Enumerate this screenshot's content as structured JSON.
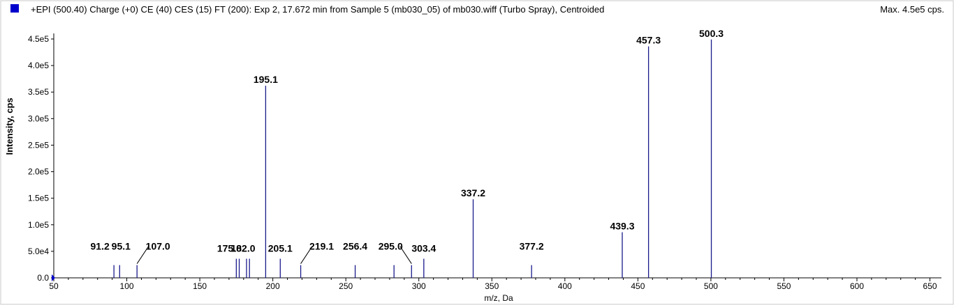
{
  "header": {
    "title": "+EPI (500.40) Charge (+0) CE (40) CES (15) FT (200): Exp 2, 17.672 min from Sample 5 (mb030_05) of mb030.wiff (Turbo Spray), Centroided",
    "max": "Max. 4.5e5 cps."
  },
  "colors": {
    "series": "#1a1a8c",
    "swatch": "#0000cc",
    "axis": "#000000"
  },
  "chart_data": {
    "type": "bar",
    "xlabel": "m/z, Da",
    "ylabel": "Intensity, cps",
    "xlim": [
      50,
      655
    ],
    "ylim": [
      0,
      450000
    ],
    "xticks": [
      50,
      100,
      150,
      200,
      250,
      300,
      350,
      400,
      450,
      500,
      550,
      600,
      650
    ],
    "yticks": [
      {
        "v": 0,
        "label": "0.0"
      },
      {
        "v": 50000,
        "label": "5.0e4"
      },
      {
        "v": 100000,
        "label": "1.0e5"
      },
      {
        "v": 150000,
        "label": "1.5e5"
      },
      {
        "v": 200000,
        "label": "2.0e5"
      },
      {
        "v": 250000,
        "label": "2.5e5"
      },
      {
        "v": 300000,
        "label": "3.0e5"
      },
      {
        "v": 350000,
        "label": "3.5e5"
      },
      {
        "v": 400000,
        "label": "4.0e5"
      },
      {
        "v": 450000,
        "label": "4.5e5"
      }
    ],
    "peaks": [
      {
        "mz": 91.2,
        "intensity": 24000,
        "label": "91.2"
      },
      {
        "mz": 95.1,
        "intensity": 24000,
        "label": "95.1"
      },
      {
        "mz": 107.0,
        "intensity": 24000,
        "label": "107.0"
      },
      {
        "mz": 175.0,
        "intensity": 36000,
        "label": "175.0"
      },
      {
        "mz": 177.0,
        "intensity": 36000,
        "label": ""
      },
      {
        "mz": 182.0,
        "intensity": 36000,
        "label": "182.0"
      },
      {
        "mz": 184.0,
        "intensity": 36000,
        "label": ""
      },
      {
        "mz": 195.1,
        "intensity": 362000,
        "label": "195.1"
      },
      {
        "mz": 205.1,
        "intensity": 36000,
        "label": "205.1"
      },
      {
        "mz": 219.1,
        "intensity": 24000,
        "label": "219.1"
      },
      {
        "mz": 256.4,
        "intensity": 24000,
        "label": "256.4"
      },
      {
        "mz": 283.0,
        "intensity": 24000,
        "label": ""
      },
      {
        "mz": 295.0,
        "intensity": 24000,
        "label": "295.0"
      },
      {
        "mz": 303.4,
        "intensity": 36000,
        "label": "303.4"
      },
      {
        "mz": 337.2,
        "intensity": 148000,
        "label": "337.2"
      },
      {
        "mz": 377.2,
        "intensity": 24000,
        "label": "377.2"
      },
      {
        "mz": 439.3,
        "intensity": 86000,
        "label": "439.3"
      },
      {
        "mz": 457.3,
        "intensity": 436000,
        "label": "457.3"
      },
      {
        "mz": 500.3,
        "intensity": 449000,
        "label": "500.3"
      }
    ]
  }
}
